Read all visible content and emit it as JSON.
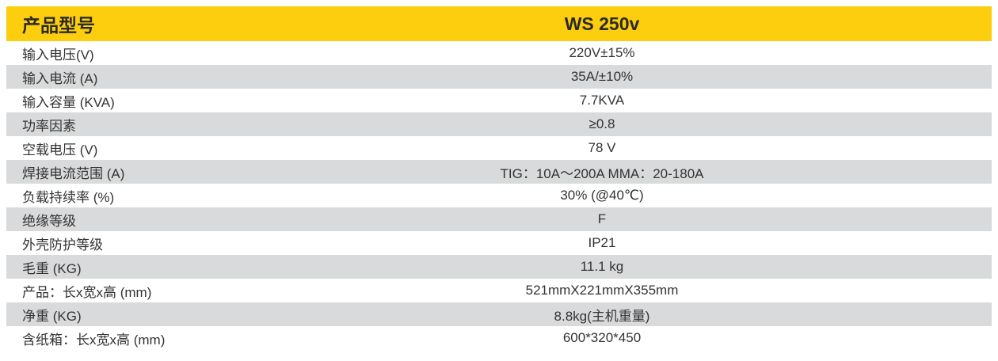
{
  "table": {
    "header": {
      "label": "产品型号",
      "value": "WS 250v"
    },
    "rows": [
      {
        "label": "输入电压(V)",
        "value": "220V±15%"
      },
      {
        "label": "输入电流 (A)",
        "value": "35A/±10%"
      },
      {
        "label": "输入容量 (KVA)",
        "value": "7.7KVA"
      },
      {
        "label": "功率因素",
        "value": "≥0.8"
      },
      {
        "label": "空载电压 (V)",
        "value": "78 V"
      },
      {
        "label": "焊接电流范围 (A)",
        "value": "TIG：10A～200A MMA：20-180A"
      },
      {
        "label": "负载持续率 (%)",
        "value": "30% (@40℃)"
      },
      {
        "label": "绝缘等级",
        "value": "F"
      },
      {
        "label": "外壳防护等级",
        "value": "IP21"
      },
      {
        "label": "毛重 (KG)",
        "value": "11.1 kg"
      },
      {
        "label": "产品：长x宽x高 (mm)",
        "value": "521mmX221mmX355mm"
      },
      {
        "label": "净重 (KG)",
        "value": "8.8kg(主机重量)"
      },
      {
        "label": "含纸箱：长x宽x高 (mm)",
        "value": "600*320*450"
      }
    ],
    "colors": {
      "header_bg": "#FCCE0D",
      "stripe_bg": "#D9DADB"
    }
  }
}
